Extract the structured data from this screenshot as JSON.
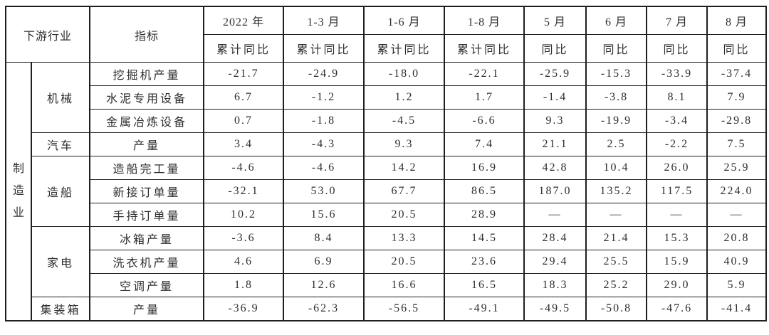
{
  "chart_data": {
    "type": "table",
    "title": "",
    "header": {
      "industry_label": "下游行业",
      "indicator_label": "指标",
      "periods": [
        {
          "label": "2022 年",
          "sub": "累计同比"
        },
        {
          "label": "1-3 月",
          "sub": "累计同比"
        },
        {
          "label": "1-6 月",
          "sub": "累计同比"
        },
        {
          "label": "1-8 月",
          "sub": "累计同比"
        },
        {
          "label": "5 月",
          "sub": "同比"
        },
        {
          "label": "6 月",
          "sub": "同比"
        },
        {
          "label": "7 月",
          "sub": "同比"
        },
        {
          "label": "8 月",
          "sub": "同比"
        }
      ]
    },
    "sector": "制造业",
    "groups": [
      {
        "name": "机械",
        "rows": [
          {
            "indicator": "挖掘机产量",
            "values": [
              "-21.7",
              "-24.9",
              "-18.0",
              "-22.1",
              "-25.9",
              "-15.3",
              "-33.9",
              "-37.4"
            ]
          },
          {
            "indicator": "水泥专用设备",
            "values": [
              "6.7",
              "-1.2",
              "1.2",
              "1.7",
              "-1.4",
              "-3.8",
              "8.1",
              "7.9"
            ]
          },
          {
            "indicator": "金属冶炼设备",
            "values": [
              "0.7",
              "-1.8",
              "-4.5",
              "-6.6",
              "9.3",
              "-19.9",
              "-3.4",
              "-29.8"
            ]
          }
        ]
      },
      {
        "name": "汽车",
        "rows": [
          {
            "indicator": "产量",
            "values": [
              "3.4",
              "-4.3",
              "9.3",
              "7.4",
              "21.1",
              "2.5",
              "-2.2",
              "7.5"
            ]
          }
        ]
      },
      {
        "name": "造船",
        "rows": [
          {
            "indicator": "造船完工量",
            "values": [
              "-4.6",
              "-4.6",
              "14.2",
              "16.9",
              "42.8",
              "10.4",
              "26.0",
              "25.9"
            ]
          },
          {
            "indicator": "新接订单量",
            "values": [
              "-32.1",
              "53.0",
              "67.7",
              "86.5",
              "187.0",
              "135.2",
              "117.5",
              "224.0"
            ]
          },
          {
            "indicator": "手持订单量",
            "values": [
              "10.2",
              "15.6",
              "20.5",
              "28.9",
              "—",
              "—",
              "—",
              "—"
            ]
          }
        ]
      },
      {
        "name": "家电",
        "rows": [
          {
            "indicator": "冰箱产量",
            "values": [
              "-3.6",
              "8.4",
              "13.3",
              "14.5",
              "28.4",
              "21.4",
              "15.3",
              "20.8"
            ]
          },
          {
            "indicator": "洗衣机产量",
            "values": [
              "4.6",
              "6.9",
              "20.5",
              "23.6",
              "29.4",
              "25.5",
              "15.9",
              "40.9"
            ]
          },
          {
            "indicator": "空调产量",
            "values": [
              "1.8",
              "12.6",
              "16.6",
              "16.5",
              "18.3",
              "25.2",
              "29.0",
              "5.9"
            ]
          }
        ]
      },
      {
        "name": "集装箱",
        "rows": [
          {
            "indicator": "产量",
            "values": [
              "-36.9",
              "-62.3",
              "-56.5",
              "-49.1",
              "-49.5",
              "-50.8",
              "-47.6",
              "-41.4"
            ]
          }
        ]
      }
    ],
    "layout": {
      "grid": "on",
      "border_color": "#1f1f1f",
      "text_color": "#2e2e2e",
      "background": "#ffffff"
    }
  }
}
